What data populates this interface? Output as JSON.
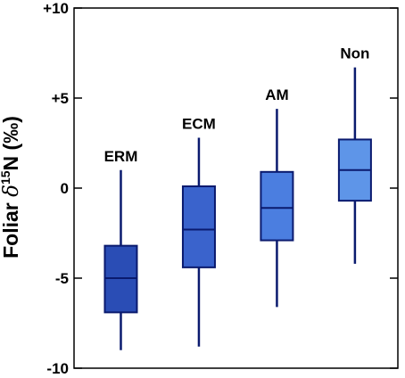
{
  "chart_data": {
    "type": "box",
    "title": "",
    "ylabel": {
      "prefix": "Foliar ",
      "symbol": "δ",
      "superscript": "15",
      "suffix": "N (‰)"
    },
    "ylim": [
      -10,
      10
    ],
    "y_ticks": [
      {
        "value": 10,
        "label": "+10"
      },
      {
        "value": 5,
        "label": "+5"
      },
      {
        "value": 0,
        "label": "0"
      },
      {
        "value": -5,
        "label": "-5"
      },
      {
        "value": -10,
        "label": "-10"
      }
    ],
    "grid": false,
    "legend": "none",
    "boxes": [
      {
        "name": "ERM",
        "whisker_low": -9.0,
        "q1": -6.9,
        "median": -5.0,
        "q3": -3.2,
        "whisker_high": 1.0,
        "color": "#2a4db5"
      },
      {
        "name": "ECM",
        "whisker_low": -8.8,
        "q1": -4.4,
        "median": -2.3,
        "q3": 0.1,
        "whisker_high": 2.8,
        "color": "#3a63cc"
      },
      {
        "name": "AM",
        "whisker_low": -6.6,
        "q1": -2.9,
        "median": -1.1,
        "q3": 0.9,
        "whisker_high": 4.4,
        "color": "#4b7ee0"
      },
      {
        "name": "Non",
        "whisker_low": -4.2,
        "q1": -0.7,
        "median": 1.0,
        "q3": 2.7,
        "whisker_high": 6.7,
        "color": "#5e95e8"
      }
    ],
    "colors": {
      "stroke": "#0a1a6e",
      "axis": "#000000"
    }
  }
}
